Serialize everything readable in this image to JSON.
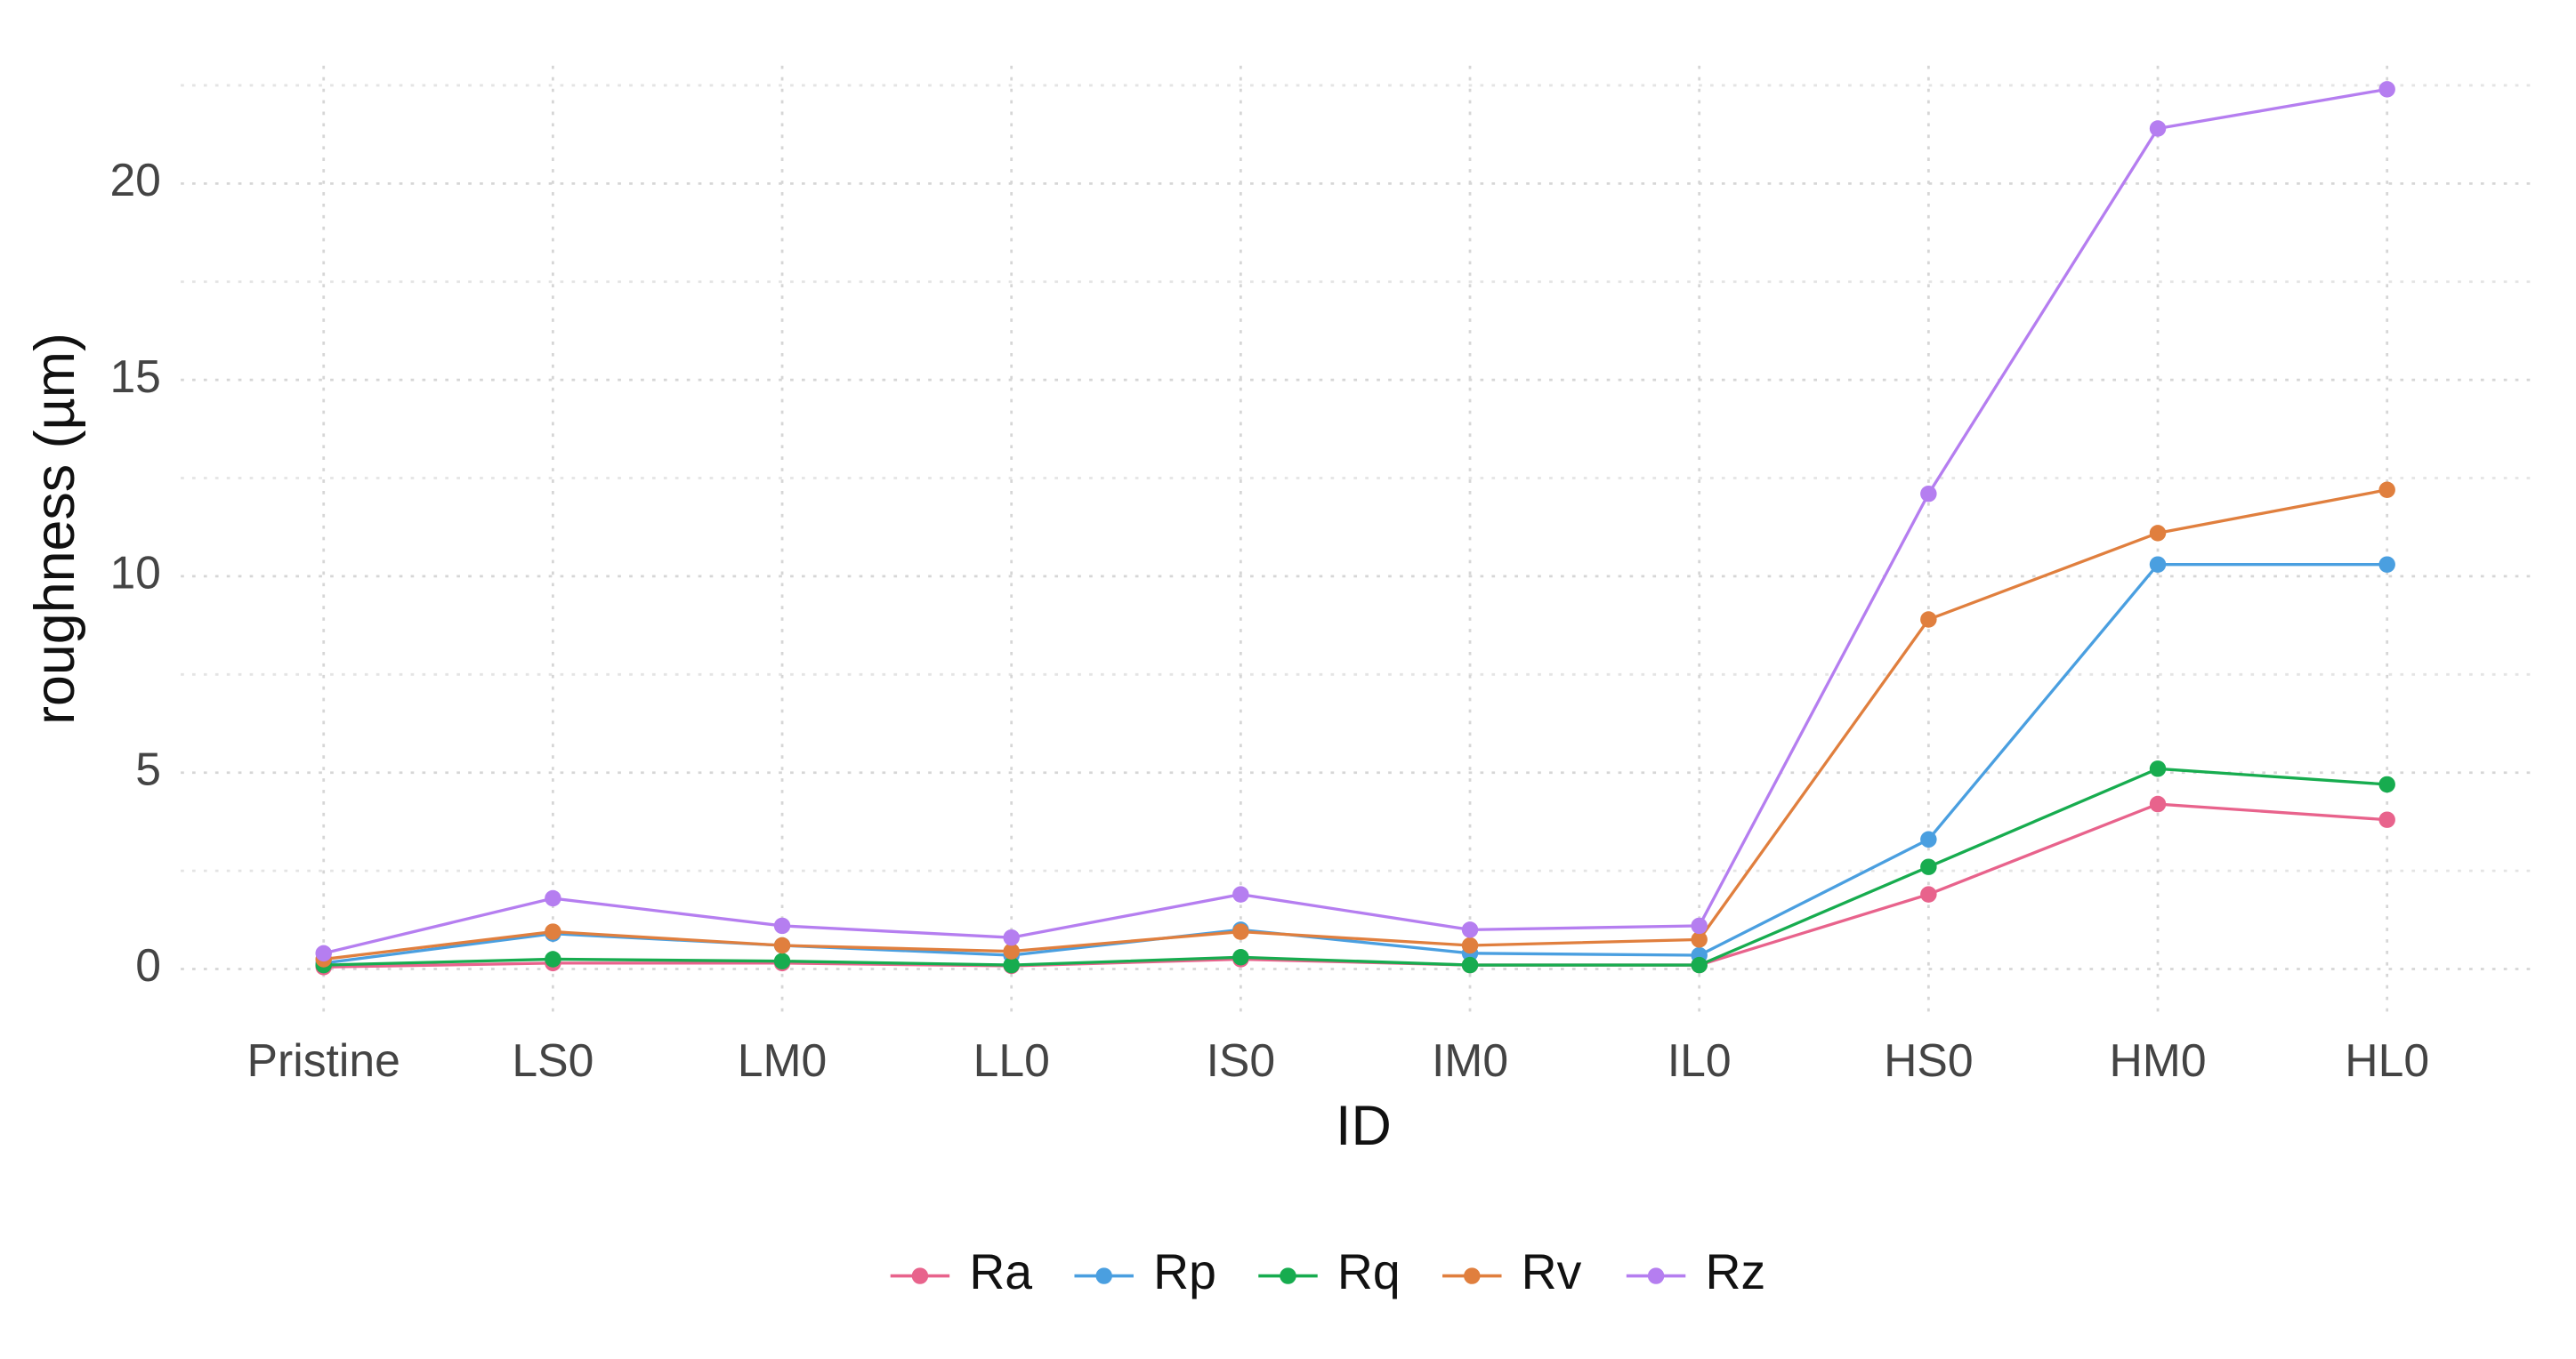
{
  "chart_data": {
    "type": "line",
    "x_label": "ID",
    "y_label": "roughness (µm)",
    "categories": [
      "Pristine",
      "LS0",
      "LM0",
      "LL0",
      "IS0",
      "IM0",
      "IL0",
      "HS0",
      "HM0",
      "HL0"
    ],
    "series": [
      {
        "name": "Ra",
        "color": "#e8638c",
        "values": [
          0.05,
          0.15,
          0.15,
          0.08,
          0.25,
          0.1,
          0.1,
          1.9,
          4.2,
          3.8
        ]
      },
      {
        "name": "Rp",
        "color": "#4a9fe0",
        "values": [
          0.15,
          0.9,
          0.6,
          0.35,
          1.0,
          0.4,
          0.35,
          3.3,
          10.3,
          10.3
        ]
      },
      {
        "name": "Rq",
        "color": "#17ac4f",
        "values": [
          0.1,
          0.25,
          0.2,
          0.1,
          0.3,
          0.1,
          0.1,
          2.6,
          5.1,
          4.7
        ]
      },
      {
        "name": "Rv",
        "color": "#e07f3e",
        "values": [
          0.25,
          0.95,
          0.6,
          0.45,
          0.95,
          0.6,
          0.75,
          8.9,
          11.1,
          12.2
        ]
      },
      {
        "name": "Rz",
        "color": "#b57ef0",
        "values": [
          0.4,
          1.8,
          1.1,
          0.8,
          1.9,
          1.0,
          1.1,
          12.1,
          21.4,
          22.4
        ]
      }
    ],
    "ylim": [
      -1.25,
      23.0
    ],
    "yticks": [
      0,
      5,
      10,
      15,
      20
    ],
    "grid": true,
    "legend": "bottom"
  }
}
